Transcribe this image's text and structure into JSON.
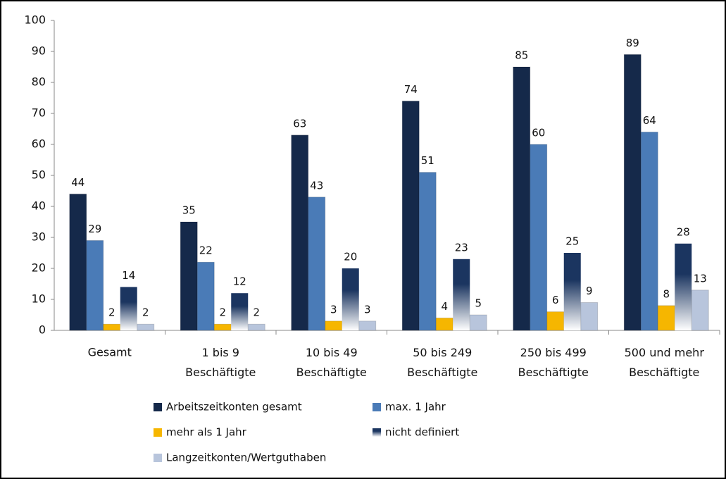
{
  "chart_data": {
    "type": "bar",
    "categories": [
      "Gesamt",
      "1 bis 9\nBeschäftigte",
      "10 bis 49\nBeschäftigte",
      "50 bis 249\nBeschäftigte",
      "250 bis 499\nBeschäftigte",
      "500 und mehr\nBeschäftigte"
    ],
    "series": [
      {
        "name": "Arbeitszeitkonten gesamt",
        "color": "#15294a",
        "values": [
          44,
          35,
          63,
          74,
          85,
          89
        ]
      },
      {
        "name": "max. 1 Jahr",
        "color": "#4a7bb7",
        "values": [
          29,
          22,
          43,
          51,
          60,
          64
        ]
      },
      {
        "name": "mehr als 1 Jahr",
        "color": "#f6b600",
        "values": [
          2,
          2,
          3,
          4,
          6,
          8
        ]
      },
      {
        "name": "nicht definiert",
        "color": "#1b3560",
        "gradient": true,
        "values": [
          14,
          12,
          20,
          23,
          25,
          28
        ]
      },
      {
        "name": "Langzeitkonten/Wertguthaben",
        "color": "#b8c5dc",
        "values": [
          2,
          2,
          3,
          5,
          9,
          13
        ]
      }
    ],
    "ylim": [
      0,
      100
    ],
    "yticks": [
      0,
      10,
      20,
      30,
      40,
      50,
      60,
      70,
      80,
      90,
      100
    ],
    "grid": false,
    "legend": "bottom"
  }
}
